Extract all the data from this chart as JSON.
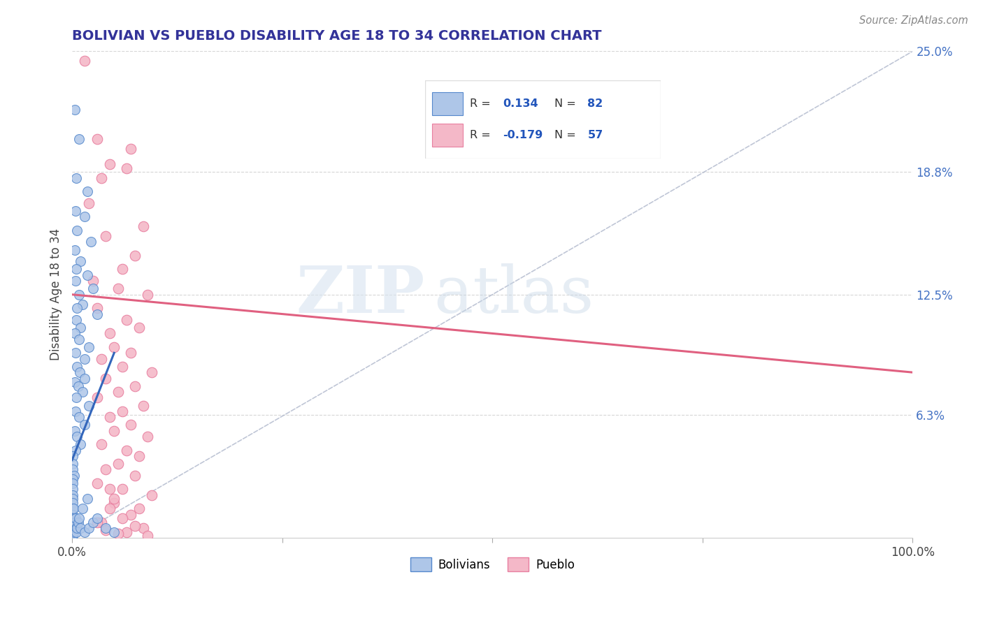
{
  "title": "BOLIVIAN VS PUEBLO DISABILITY AGE 18 TO 34 CORRELATION CHART",
  "source": "Source: ZipAtlas.com",
  "ylabel": "Disability Age 18 to 34",
  "xlim": [
    0,
    100
  ],
  "ylim": [
    0,
    25
  ],
  "ytick_positions": [
    0,
    6.3,
    12.5,
    18.8,
    25.0
  ],
  "ytick_labels": [
    "",
    "6.3%",
    "12.5%",
    "18.8%",
    "25.0%"
  ],
  "bolivian_color": "#aec6e8",
  "pueblo_color": "#f4b8c8",
  "bolivian_edge": "#5588cc",
  "pueblo_edge": "#e87fa0",
  "trend_bolivian_color": "#3366bb",
  "trend_pueblo_color": "#e06080",
  "diagonal_color": "#b0b8cc",
  "R_bolivian": 0.134,
  "N_bolivian": 82,
  "R_pueblo": -0.179,
  "N_pueblo": 57,
  "watermark_zip": "ZIP",
  "watermark_atlas": "atlas",
  "legend_label_blue": "Bolivians",
  "legend_label_pink": "Pueblo",
  "bolivian_points": [
    [
      0.3,
      22.0
    ],
    [
      0.8,
      20.5
    ],
    [
      0.5,
      18.5
    ],
    [
      1.8,
      17.8
    ],
    [
      0.4,
      16.8
    ],
    [
      1.5,
      16.5
    ],
    [
      0.6,
      15.8
    ],
    [
      2.2,
      15.2
    ],
    [
      0.3,
      14.8
    ],
    [
      1.0,
      14.2
    ],
    [
      0.5,
      13.8
    ],
    [
      1.8,
      13.5
    ],
    [
      0.4,
      13.2
    ],
    [
      2.5,
      12.8
    ],
    [
      0.8,
      12.5
    ],
    [
      1.2,
      12.0
    ],
    [
      0.6,
      11.8
    ],
    [
      3.0,
      11.5
    ],
    [
      0.5,
      11.2
    ],
    [
      1.0,
      10.8
    ],
    [
      0.3,
      10.5
    ],
    [
      0.8,
      10.2
    ],
    [
      2.0,
      9.8
    ],
    [
      0.4,
      9.5
    ],
    [
      1.5,
      9.2
    ],
    [
      0.6,
      8.8
    ],
    [
      0.9,
      8.5
    ],
    [
      1.5,
      8.2
    ],
    [
      0.3,
      8.0
    ],
    [
      0.7,
      7.8
    ],
    [
      1.2,
      7.5
    ],
    [
      0.5,
      7.2
    ],
    [
      2.0,
      6.8
    ],
    [
      0.4,
      6.5
    ],
    [
      0.8,
      6.2
    ],
    [
      1.5,
      5.8
    ],
    [
      0.3,
      5.5
    ],
    [
      0.6,
      5.2
    ],
    [
      1.0,
      4.8
    ],
    [
      0.4,
      4.5
    ],
    [
      0.05,
      4.2
    ],
    [
      0.1,
      3.8
    ],
    [
      0.05,
      3.5
    ],
    [
      0.2,
      3.2
    ],
    [
      0.08,
      3.0
    ],
    [
      0.05,
      2.8
    ],
    [
      0.1,
      2.5
    ],
    [
      0.05,
      2.2
    ],
    [
      0.08,
      2.0
    ],
    [
      0.05,
      1.8
    ],
    [
      0.1,
      1.5
    ],
    [
      0.08,
      1.2
    ],
    [
      0.05,
      1.0
    ],
    [
      0.1,
      0.8
    ],
    [
      0.05,
      0.6
    ],
    [
      0.08,
      0.4
    ],
    [
      0.05,
      0.3
    ],
    [
      0.1,
      0.2
    ],
    [
      0.05,
      0.1
    ],
    [
      0.08,
      0.15
    ],
    [
      0.12,
      0.5
    ],
    [
      0.15,
      0.8
    ],
    [
      0.2,
      1.0
    ],
    [
      0.18,
      1.5
    ],
    [
      0.25,
      0.3
    ],
    [
      0.3,
      0.5
    ],
    [
      0.35,
      0.8
    ],
    [
      0.4,
      1.0
    ],
    [
      0.45,
      0.5
    ],
    [
      0.5,
      0.3
    ],
    [
      0.6,
      0.5
    ],
    [
      0.7,
      0.8
    ],
    [
      0.8,
      1.0
    ],
    [
      1.0,
      0.5
    ],
    [
      1.5,
      0.3
    ],
    [
      2.0,
      0.5
    ],
    [
      2.5,
      0.8
    ],
    [
      3.0,
      1.0
    ],
    [
      4.0,
      0.5
    ],
    [
      5.0,
      0.3
    ],
    [
      1.2,
      1.5
    ],
    [
      1.8,
      2.0
    ]
  ],
  "pueblo_points": [
    [
      1.5,
      24.5
    ],
    [
      3.0,
      20.5
    ],
    [
      7.0,
      20.0
    ],
    [
      4.5,
      19.2
    ],
    [
      6.5,
      19.0
    ],
    [
      3.5,
      18.5
    ],
    [
      2.0,
      17.2
    ],
    [
      8.5,
      16.0
    ],
    [
      4.0,
      15.5
    ],
    [
      7.5,
      14.5
    ],
    [
      6.0,
      13.8
    ],
    [
      2.5,
      13.2
    ],
    [
      5.5,
      12.8
    ],
    [
      9.0,
      12.5
    ],
    [
      3.0,
      11.8
    ],
    [
      6.5,
      11.2
    ],
    [
      8.0,
      10.8
    ],
    [
      4.5,
      10.5
    ],
    [
      5.0,
      9.8
    ],
    [
      7.0,
      9.5
    ],
    [
      3.5,
      9.2
    ],
    [
      6.0,
      8.8
    ],
    [
      9.5,
      8.5
    ],
    [
      4.0,
      8.2
    ],
    [
      7.5,
      7.8
    ],
    [
      5.5,
      7.5
    ],
    [
      3.0,
      7.2
    ],
    [
      8.5,
      6.8
    ],
    [
      6.0,
      6.5
    ],
    [
      4.5,
      6.2
    ],
    [
      7.0,
      5.8
    ],
    [
      5.0,
      5.5
    ],
    [
      9.0,
      5.2
    ],
    [
      3.5,
      4.8
    ],
    [
      6.5,
      4.5
    ],
    [
      8.0,
      4.2
    ],
    [
      5.5,
      3.8
    ],
    [
      4.0,
      3.5
    ],
    [
      7.5,
      3.2
    ],
    [
      3.0,
      2.8
    ],
    [
      6.0,
      2.5
    ],
    [
      9.5,
      2.2
    ],
    [
      5.0,
      1.8
    ],
    [
      4.5,
      1.5
    ],
    [
      7.0,
      1.2
    ],
    [
      3.5,
      0.8
    ],
    [
      8.5,
      0.5
    ],
    [
      6.5,
      0.3
    ],
    [
      5.5,
      0.2
    ],
    [
      9.0,
      0.1
    ],
    [
      4.0,
      0.4
    ],
    [
      7.5,
      0.6
    ],
    [
      3.0,
      0.8
    ],
    [
      6.0,
      1.0
    ],
    [
      8.0,
      1.5
    ],
    [
      5.0,
      2.0
    ],
    [
      4.5,
      2.5
    ]
  ]
}
